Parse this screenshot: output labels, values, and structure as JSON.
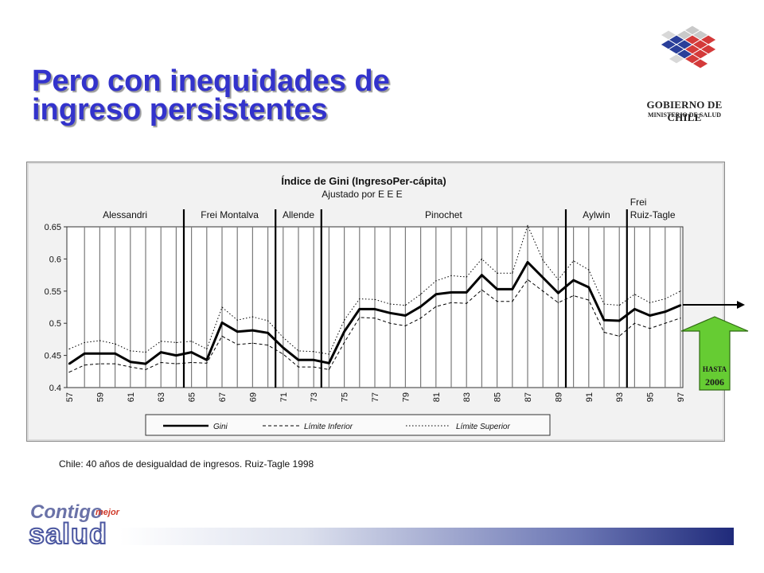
{
  "slide": {
    "title_line1": "Pero con inequidades de",
    "title_line2": "ingreso persistentes",
    "caption": "Chile: 40 años de desigualdad de ingresos. Ruiz-Tagle 1998"
  },
  "logo": {
    "name": "GOBIERNO DE CHILE",
    "subtitle": "MINISTERIO DE SALUD",
    "icon": "gov-chile-cube-logo"
  },
  "footer": {
    "word1": "Contigo",
    "word2": "mejor",
    "word3": "salud",
    "icon": "contigo-mejor-salud-logo"
  },
  "badge": {
    "line1": "HASTA",
    "line2": "2006",
    "color": "#66cc33"
  },
  "colors": {
    "title": "#3333cc",
    "chart_bg": "#f2f2f2",
    "badge": "#66cc33"
  },
  "chart_data": {
    "type": "line",
    "title": "Índice de Gini (IngresoPer-cápita)",
    "subtitle": "Ajustado por E E E",
    "x": [
      "57",
      "58",
      "59",
      "60",
      "61",
      "62",
      "63",
      "64",
      "65",
      "66",
      "67",
      "68",
      "69",
      "70",
      "71",
      "72",
      "73",
      "74",
      "75",
      "76",
      "77",
      "78",
      "79",
      "80",
      "81",
      "82",
      "83",
      "84",
      "85",
      "86",
      "87",
      "88",
      "89",
      "90",
      "91",
      "92",
      "93",
      "94",
      "95",
      "96",
      "97"
    ],
    "x_tick_labels": [
      "57",
      "59",
      "61",
      "63",
      "65",
      "67",
      "69",
      "71",
      "73",
      "75",
      "77",
      "79",
      "81",
      "83",
      "85",
      "87",
      "89",
      "91",
      "93",
      "95",
      "97"
    ],
    "y_ticks": [
      "0.4",
      "0.45",
      "0.5",
      "0.55",
      "0.6",
      "0.65"
    ],
    "ylim": [
      0.4,
      0.65
    ],
    "grid": true,
    "legend_position": "bottom",
    "series": [
      {
        "name": "Gini",
        "style": "solid",
        "values": [
          0.437,
          0.453,
          0.453,
          0.453,
          0.44,
          0.437,
          0.455,
          0.45,
          0.455,
          0.443,
          0.501,
          0.487,
          0.489,
          0.485,
          0.462,
          0.443,
          0.443,
          0.438,
          0.487,
          0.522,
          0.522,
          0.516,
          0.512,
          0.526,
          0.545,
          0.548,
          0.548,
          0.575,
          0.553,
          0.553,
          0.595,
          0.571,
          0.547,
          0.567,
          0.556,
          0.505,
          0.504,
          0.522,
          0.512,
          0.518,
          0.528
        ]
      },
      {
        "name": "Límite Inferior",
        "style": "dashed",
        "values": [
          0.424,
          0.435,
          0.437,
          0.437,
          0.432,
          0.428,
          0.439,
          0.437,
          0.439,
          0.438,
          0.48,
          0.467,
          0.469,
          0.466,
          0.452,
          0.432,
          0.432,
          0.428,
          0.47,
          0.509,
          0.508,
          0.5,
          0.496,
          0.508,
          0.526,
          0.532,
          0.531,
          0.552,
          0.534,
          0.534,
          0.568,
          0.55,
          0.532,
          0.543,
          0.536,
          0.486,
          0.48,
          0.5,
          0.492,
          0.5,
          0.508
        ]
      },
      {
        "name": "Límite Superior",
        "style": "dotted",
        "values": [
          0.46,
          0.47,
          0.473,
          0.468,
          0.457,
          0.455,
          0.472,
          0.47,
          0.472,
          0.46,
          0.525,
          0.505,
          0.51,
          0.504,
          0.478,
          0.457,
          0.456,
          0.452,
          0.505,
          0.538,
          0.537,
          0.53,
          0.528,
          0.545,
          0.566,
          0.574,
          0.572,
          0.6,
          0.578,
          0.578,
          0.652,
          0.598,
          0.568,
          0.597,
          0.583,
          0.53,
          0.528,
          0.545,
          0.532,
          0.538,
          0.55
        ]
      }
    ],
    "periods": [
      "Alessandri",
      "Frei Montalva",
      "Allende",
      "Pinochet",
      "Aylwin",
      "Frei Ruiz-Tagle"
    ],
    "period_boundaries": [
      "64",
      "70",
      "73",
      "89",
      "93"
    ]
  }
}
